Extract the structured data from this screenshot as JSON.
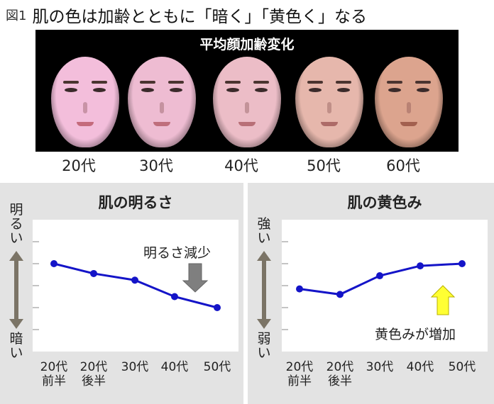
{
  "header": {
    "figure_label": "図1",
    "title": "肌の色は加齢とともに「暗く」「黄色く」なる"
  },
  "faces": {
    "heading": "平均顔加齢変化",
    "decades": [
      "20代",
      "30代",
      "40代",
      "50代",
      "60代"
    ],
    "skin_colors": [
      "#f3bedb",
      "#eebcd2",
      "#ecbdc7",
      "#e6b7ac",
      "#dca48e"
    ]
  },
  "colors": {
    "line": "#1414c8",
    "marker": "#1414c8",
    "plot_bg": "#ffffff",
    "panel_bg": "#e3e3e3",
    "arrow_gray": "#7f7f7f",
    "arrow_yellow": "#ffff33"
  },
  "chart_data": [
    {
      "type": "line",
      "title": "肌の明るさ",
      "y_top_label": "明るい",
      "y_bottom_label": "暗い",
      "categories": [
        [
          "20代",
          "前半"
        ],
        [
          "20代",
          "後半"
        ],
        [
          "30代",
          ""
        ],
        [
          "40代",
          ""
        ],
        [
          "50代",
          ""
        ]
      ],
      "values": [
        4.0,
        3.55,
        3.25,
        2.5,
        2.0
      ],
      "ylim": [
        0,
        6
      ],
      "grid": "horizontal",
      "annotation": "明るさ減少",
      "annotation_arrow": "down"
    },
    {
      "type": "line",
      "title": "肌の黄色み",
      "y_top_label": "強い",
      "y_bottom_label": "弱い",
      "categories": [
        [
          "20代",
          "前半"
        ],
        [
          "20代",
          "後半"
        ],
        [
          "30代",
          ""
        ],
        [
          "40代",
          ""
        ],
        [
          "50代",
          ""
        ]
      ],
      "values": [
        2.85,
        2.6,
        3.45,
        3.9,
        4.0
      ],
      "ylim": [
        0,
        6
      ],
      "grid": "horizontal",
      "annotation": "黄色みが増加",
      "annotation_arrow": "up"
    }
  ]
}
